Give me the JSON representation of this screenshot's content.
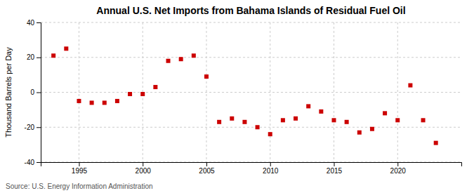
{
  "chart_data": {
    "type": "scatter",
    "title": "Annual U.S. Net Imports from Bahama Islands of Residual Fuel Oil",
    "ylabel": "Thousand Barrels per Day",
    "annotations": [
      "Source: U.S. Energy Information Administration"
    ],
    "x": [
      1993,
      1994,
      1995,
      1996,
      1997,
      1998,
      1999,
      2000,
      2001,
      2002,
      2003,
      2004,
      2005,
      2006,
      2007,
      2008,
      2009,
      2010,
      2011,
      2012,
      2013,
      2014,
      2015,
      2016,
      2017,
      2018,
      2019,
      2020,
      2021,
      2022,
      2023
    ],
    "values": [
      21,
      25,
      -5,
      -6,
      -6,
      -5,
      -1,
      -1,
      3,
      18,
      19,
      21,
      9,
      -17,
      -15,
      -17,
      -20,
      -24,
      -16,
      -15,
      -8,
      -11,
      -16,
      -17,
      -23,
      -21,
      -12,
      -16,
      4,
      -16,
      -29
    ],
    "color": "#cc0000",
    "marker": "square",
    "xlim": [
      1992,
      2025
    ],
    "xticks": [
      1995,
      2000,
      2005,
      2010,
      2015,
      2020
    ],
    "ylim": [
      -40,
      40
    ],
    "yticks": [
      -40,
      -20,
      0,
      20,
      40
    ],
    "grid": true
  }
}
